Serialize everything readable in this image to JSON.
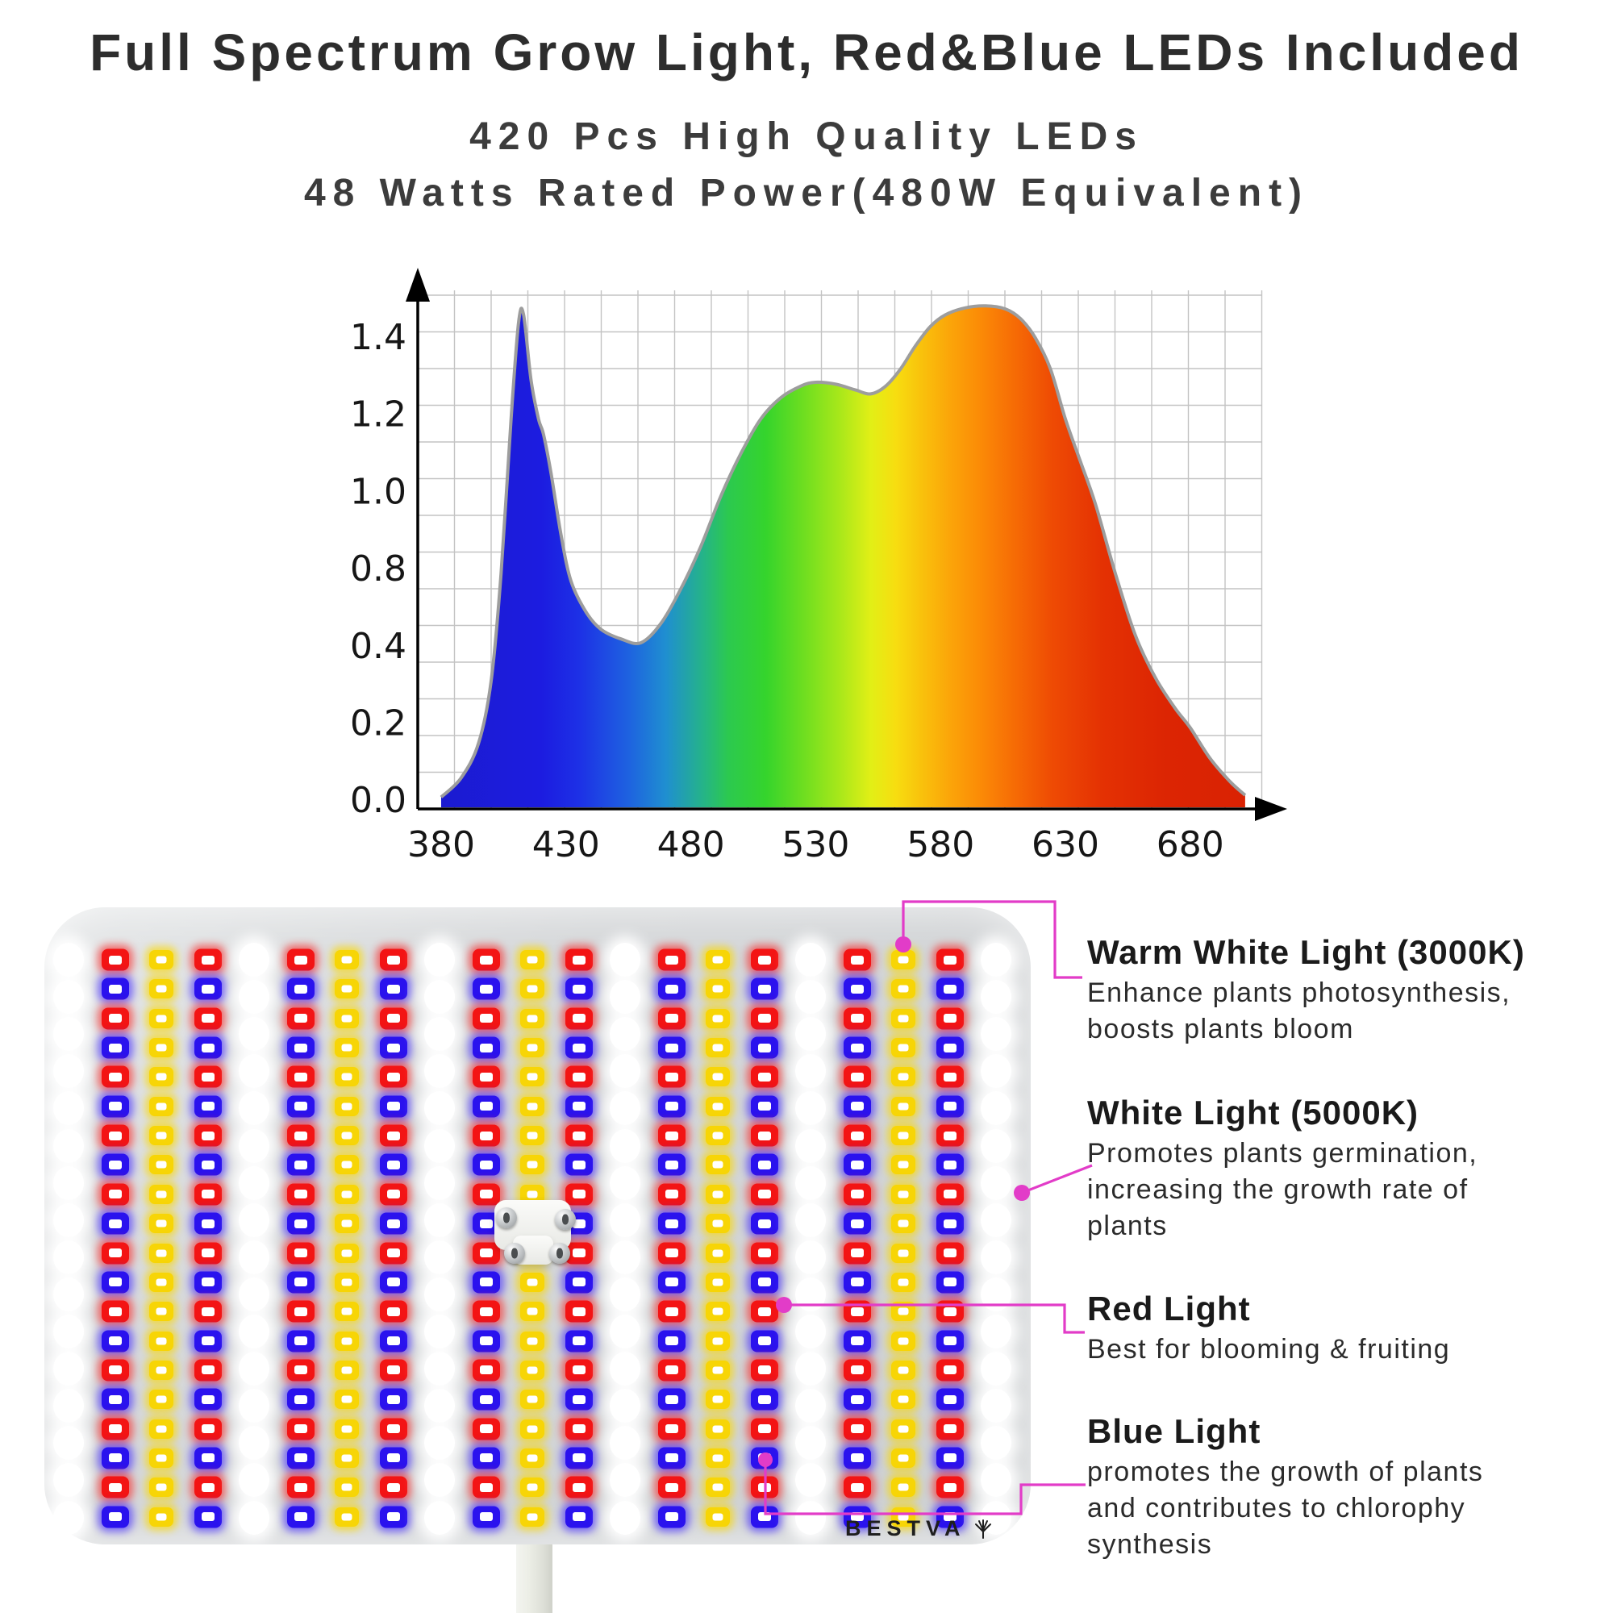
{
  "header": {
    "title": "Full Spectrum Grow Light, Red&Blue LEDs Included",
    "subtitle1": "420 Pcs High Quality LEDs",
    "subtitle2": "48 Watts Rated Power(480W Equivalent)"
  },
  "chart_data": {
    "type": "area",
    "title": "",
    "xlabel": "",
    "ylabel": "",
    "x_tick_labels": [
      "380",
      "430",
      "480",
      "530",
      "580",
      "630",
      "680"
    ],
    "y_tick_labels": [
      "1.4",
      "1.2",
      "1.0",
      "0.8",
      "0.4",
      "0.2",
      "0.0"
    ],
    "x_range_nm": [
      380,
      703
    ],
    "ylim": [
      0,
      1.5
    ],
    "grid": true,
    "legend": "none",
    "points": [
      [
        380,
        0.02
      ],
      [
        388,
        0.07
      ],
      [
        395,
        0.16
      ],
      [
        400,
        0.32
      ],
      [
        404,
        0.6
      ],
      [
        408,
        1.0
      ],
      [
        411,
        1.25
      ],
      [
        413,
        1.27
      ],
      [
        416,
        1.1
      ],
      [
        419,
        1.0
      ],
      [
        421,
        0.96
      ],
      [
        424,
        0.86
      ],
      [
        428,
        0.7
      ],
      [
        432,
        0.58
      ],
      [
        438,
        0.5
      ],
      [
        444,
        0.455
      ],
      [
        452,
        0.43
      ],
      [
        460,
        0.42
      ],
      [
        468,
        0.47
      ],
      [
        476,
        0.56
      ],
      [
        484,
        0.67
      ],
      [
        492,
        0.8
      ],
      [
        500,
        0.91
      ],
      [
        508,
        1.0
      ],
      [
        516,
        1.055
      ],
      [
        524,
        1.085
      ],
      [
        530,
        1.095
      ],
      [
        538,
        1.09
      ],
      [
        546,
        1.075
      ],
      [
        552,
        1.065
      ],
      [
        558,
        1.085
      ],
      [
        564,
        1.13
      ],
      [
        570,
        1.19
      ],
      [
        576,
        1.24
      ],
      [
        582,
        1.27
      ],
      [
        590,
        1.288
      ],
      [
        598,
        1.293
      ],
      [
        606,
        1.285
      ],
      [
        612,
        1.26
      ],
      [
        618,
        1.21
      ],
      [
        624,
        1.13
      ],
      [
        630,
        1.0
      ],
      [
        636,
        0.89
      ],
      [
        642,
        0.78
      ],
      [
        650,
        0.6
      ],
      [
        658,
        0.44
      ],
      [
        666,
        0.33
      ],
      [
        674,
        0.25
      ],
      [
        680,
        0.2
      ],
      [
        688,
        0.12
      ],
      [
        696,
        0.06
      ],
      [
        702,
        0.025
      ]
    ],
    "spectrum_gradient": [
      [
        380,
        "#1b1bd0"
      ],
      [
        420,
        "#1c1ce0"
      ],
      [
        435,
        "#1d30e6"
      ],
      [
        455,
        "#1e62e0"
      ],
      [
        470,
        "#1f8fd0"
      ],
      [
        485,
        "#25b487"
      ],
      [
        495,
        "#2cc94f"
      ],
      [
        510,
        "#35d42c"
      ],
      [
        525,
        "#6ede20"
      ],
      [
        540,
        "#abe81a"
      ],
      [
        552,
        "#e2ef16"
      ],
      [
        562,
        "#f7dd10"
      ],
      [
        572,
        "#f9c20c"
      ],
      [
        584,
        "#fba409"
      ],
      [
        596,
        "#fb8a06"
      ],
      [
        610,
        "#f66a05"
      ],
      [
        625,
        "#ee4a04"
      ],
      [
        645,
        "#e43103"
      ],
      [
        670,
        "#dc2503"
      ],
      [
        703,
        "#d92203"
      ]
    ],
    "notes": "Relative spectral intensity curve filled with rainbow gradient; y tick sequence as printed skips 0.6"
  },
  "annotations": [
    {
      "id": "warm-white",
      "title": "Warm White Light (3000K)",
      "lines": [
        "Enhance plants photosynthesis,",
        "boosts plants bloom"
      ]
    },
    {
      "id": "white",
      "title": "White Light (5000K)",
      "lines": [
        "Promotes plants germination,",
        "increasing the growth rate of",
        "plants"
      ]
    },
    {
      "id": "red",
      "title": "Red Light",
      "lines": [
        "Best for blooming & fruiting"
      ]
    },
    {
      "id": "blue",
      "title": "Blue Light",
      "lines": [
        "promotes the growth of plants",
        "and contributes to chlorophy",
        "synthesis"
      ]
    }
  ],
  "panel": {
    "logo_text": "BESTVA",
    "led_grid": {
      "columns": 21,
      "column_pattern": "white, red/blue, warm-white(yellow), red/blue — repeating",
      "rb_rows": 20,
      "white_rows": 16,
      "total_leds_claimed": 420
    },
    "led_colors": {
      "red": "#f31414",
      "blue": "#2a12ee",
      "warm_white_yellow": "#f7d506",
      "white": "#ffffff"
    },
    "callout_accent": "#e23cc8"
  }
}
